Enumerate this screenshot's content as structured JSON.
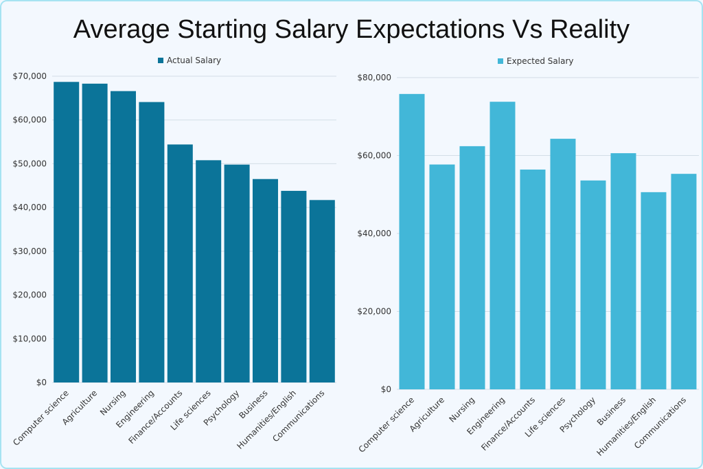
{
  "title": "Average Starting Salary Expectations Vs Reality",
  "chart_data": [
    {
      "type": "bar",
      "categories": [
        "Computer science",
        "Agriculture",
        "Nursing",
        "Engineering",
        "Finance/Accounts",
        "Life sciences",
        "Psychology",
        "Business",
        "Humanities/English",
        "Communications"
      ],
      "series": [
        {
          "name": "Actual Salary",
          "values": [
            68700,
            68300,
            66600,
            64100,
            54400,
            50800,
            49800,
            46500,
            43800,
            41700
          ],
          "color": "#0b7499"
        }
      ],
      "ylim": [
        0,
        70000
      ],
      "yticks": [
        "$0",
        "$10,000",
        "$20,000",
        "$30,000",
        "$40,000",
        "$50,000",
        "$60,000",
        "$70,000"
      ],
      "ytick_values": [
        0,
        10000,
        20000,
        30000,
        40000,
        50000,
        60000,
        70000
      ],
      "grid": true,
      "legend": "top"
    },
    {
      "type": "bar",
      "categories": [
        "Computer science",
        "Agriculture",
        "Nursing",
        "Engineering",
        "Finance/Accounts",
        "Life sciences",
        "Psychology",
        "Business",
        "Humanities/English",
        "Communications"
      ],
      "series": [
        {
          "name": "Expected Salary",
          "values": [
            75800,
            57700,
            62400,
            73800,
            56400,
            64300,
            53600,
            60600,
            50600,
            55300
          ],
          "color": "#42b7d8"
        }
      ],
      "ylim": [
        0,
        80000
      ],
      "yticks": [
        "$0",
        "$20,000",
        "$40,000",
        "$60,000",
        "$80,000"
      ],
      "ytick_values": [
        0,
        20000,
        40000,
        60000,
        80000
      ],
      "grid": true,
      "legend": "top"
    }
  ]
}
